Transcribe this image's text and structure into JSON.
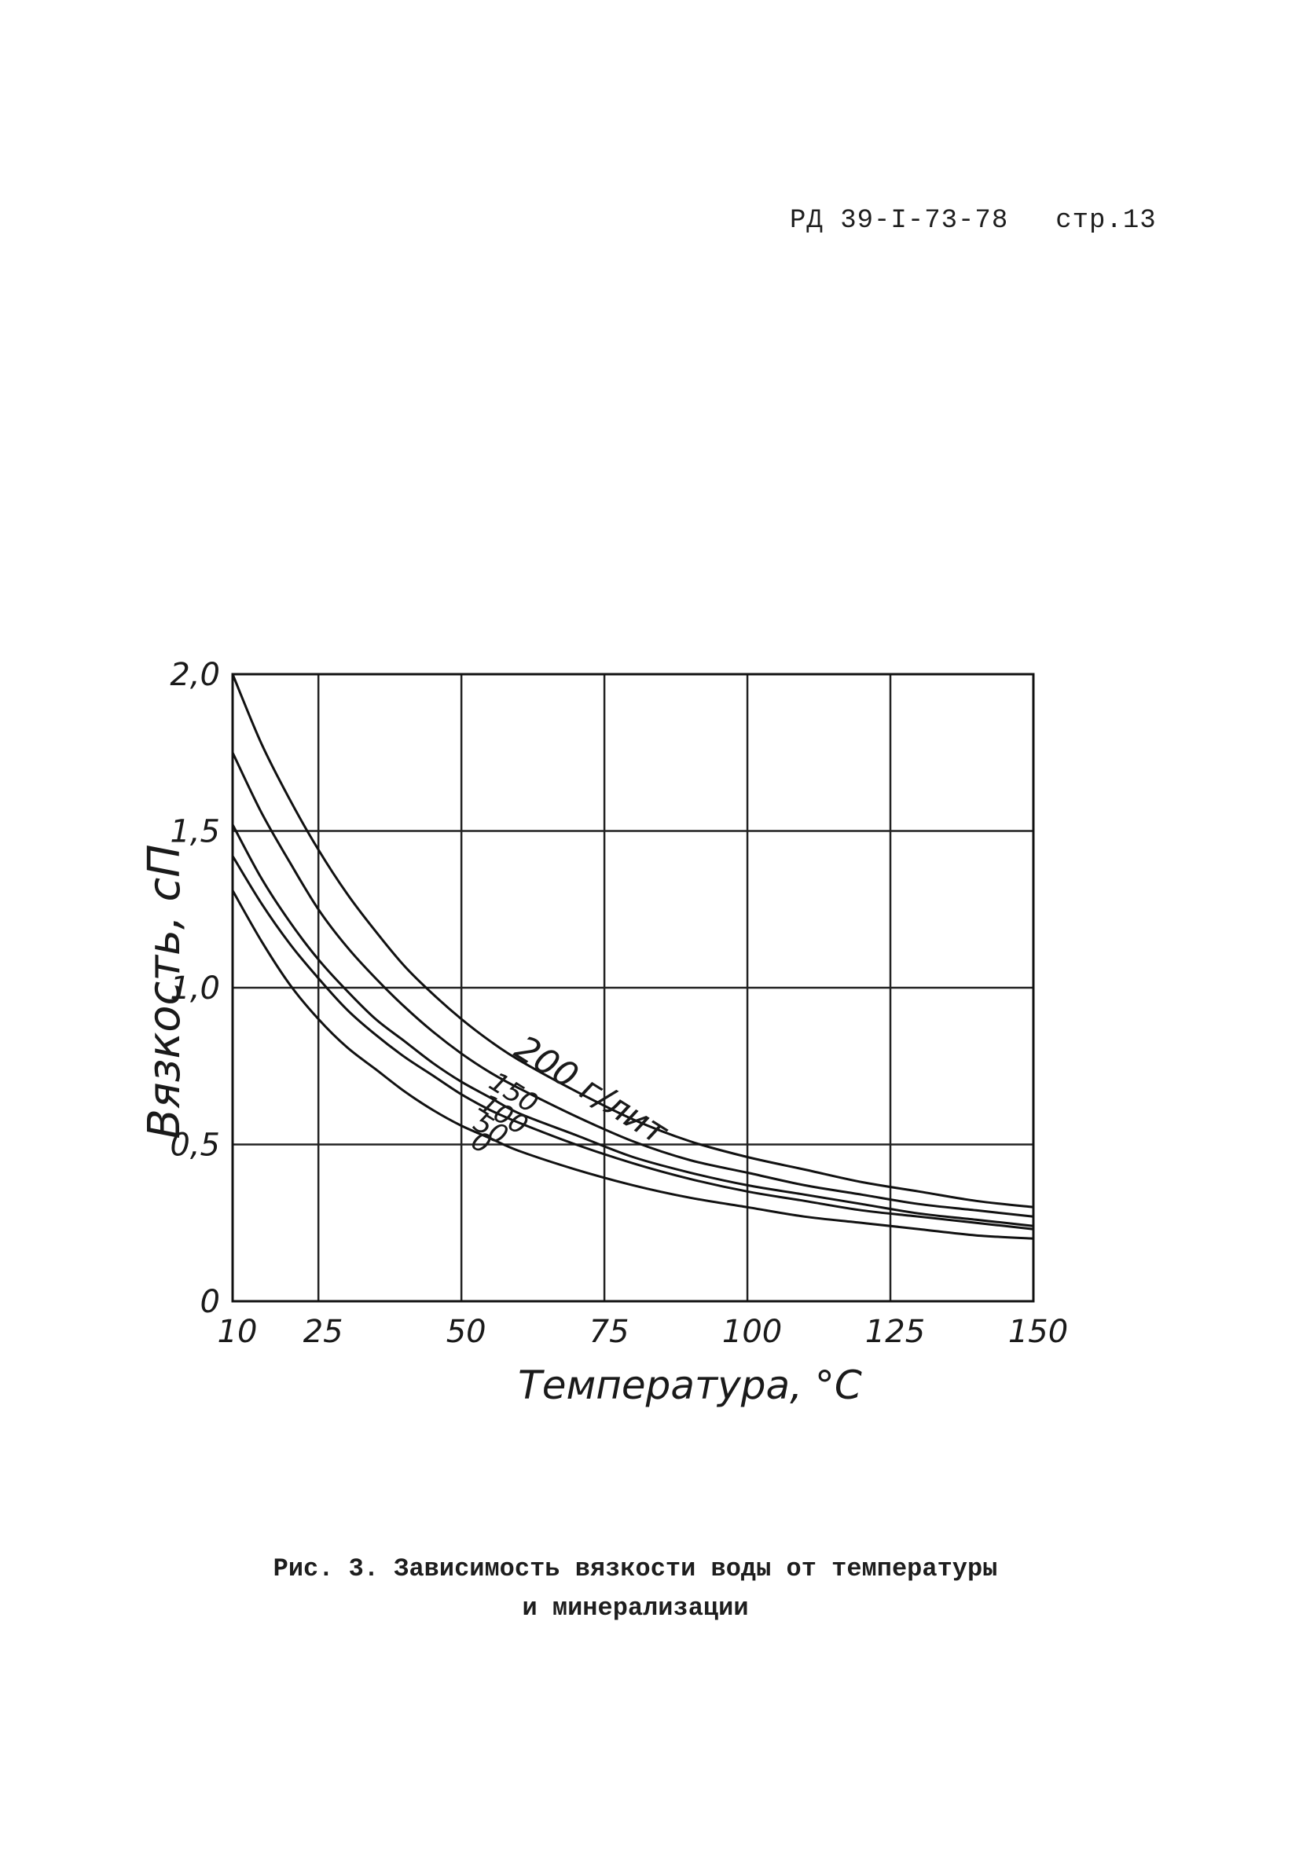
{
  "header": {
    "doc_id": "РД 39-I-73-78",
    "page": "стр.13"
  },
  "caption": {
    "line1": "Рис. 3. Зависимость вязкости воды от температуры",
    "line2": "и минерализации"
  },
  "chart_data": {
    "type": "line",
    "xlabel": "Температура, °С",
    "ylabel": "Вязкость, сП",
    "xlim": [
      10,
      150
    ],
    "ylim": [
      0,
      2.0
    ],
    "x_ticks": [
      10,
      25,
      50,
      75,
      100,
      125,
      150
    ],
    "x_tick_labels": [
      "10",
      "25",
      "50",
      "75",
      "100",
      "125",
      "150"
    ],
    "y_ticks": [
      0,
      0.5,
      1.0,
      1.5,
      2.0
    ],
    "y_tick_labels": [
      "0",
      "0,5",
      "1,0",
      "1,5",
      "2,0"
    ],
    "grid": true,
    "x": [
      10,
      15,
      20,
      25,
      30,
      35,
      40,
      45,
      50,
      55,
      60,
      70,
      80,
      90,
      100,
      110,
      120,
      130,
      140,
      150
    ],
    "series": [
      {
        "name": "200 г/л",
        "label": "200 г/лит",
        "values": [
          2.0,
          1.78,
          1.6,
          1.44,
          1.3,
          1.18,
          1.07,
          0.98,
          0.9,
          0.83,
          0.77,
          0.67,
          0.58,
          0.51,
          0.46,
          0.42,
          0.38,
          0.35,
          0.32,
          0.3
        ]
      },
      {
        "name": "150",
        "label": "150",
        "values": [
          1.75,
          1.56,
          1.4,
          1.25,
          1.13,
          1.03,
          0.94,
          0.86,
          0.79,
          0.73,
          0.68,
          0.59,
          0.51,
          0.45,
          0.41,
          0.37,
          0.34,
          0.31,
          0.29,
          0.27
        ]
      },
      {
        "name": "100",
        "label": "100",
        "values": [
          1.52,
          1.35,
          1.21,
          1.09,
          0.99,
          0.9,
          0.83,
          0.76,
          0.7,
          0.65,
          0.6,
          0.53,
          0.46,
          0.41,
          0.37,
          0.34,
          0.31,
          0.28,
          0.26,
          0.24
        ]
      },
      {
        "name": "50",
        "label": "50",
        "values": [
          1.42,
          1.27,
          1.14,
          1.03,
          0.93,
          0.85,
          0.78,
          0.72,
          0.66,
          0.61,
          0.57,
          0.5,
          0.44,
          0.39,
          0.35,
          0.32,
          0.29,
          0.27,
          0.25,
          0.23
        ]
      },
      {
        "name": "0",
        "label": "0",
        "values": [
          1.31,
          1.15,
          1.01,
          0.9,
          0.81,
          0.74,
          0.67,
          0.61,
          0.56,
          0.52,
          0.48,
          0.42,
          0.37,
          0.33,
          0.3,
          0.27,
          0.25,
          0.23,
          0.21,
          0.2
        ]
      }
    ]
  }
}
